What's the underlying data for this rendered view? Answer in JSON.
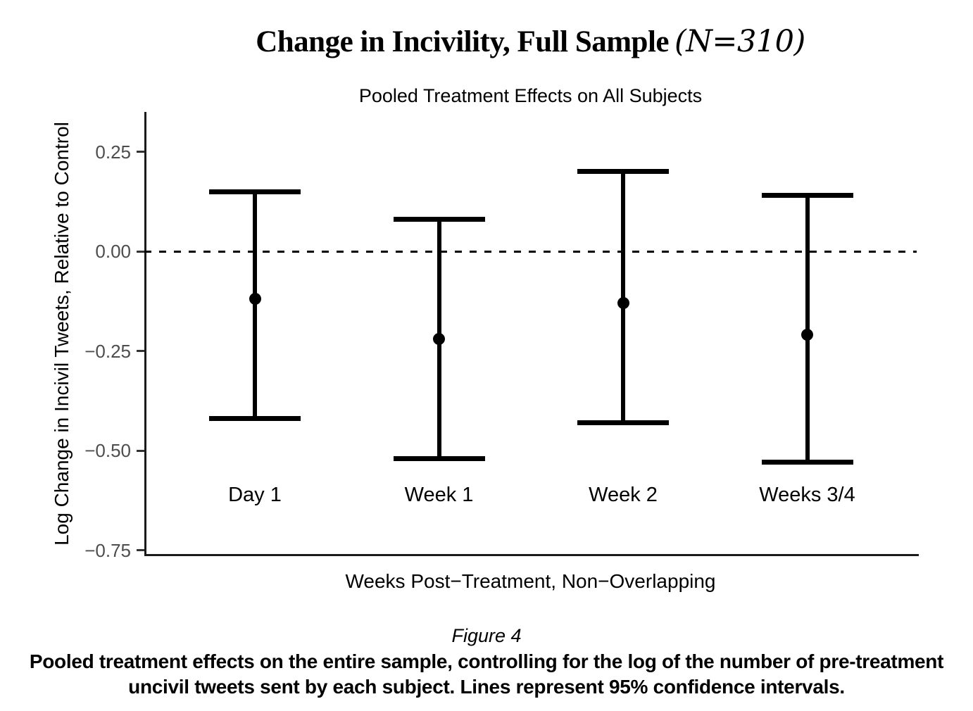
{
  "header": {
    "title": "Change in Incivility, Full Sample",
    "title_note": "(N=310)",
    "subtitle": "Pooled Treatment Effects on All Subjects"
  },
  "axes": {
    "y_title": "Log Change in Incivil Tweets, Relative to Control",
    "x_title": "Weeks Post−Treatment, Non−Overlapping"
  },
  "caption": {
    "figure_label": "Figure 4",
    "line1": "Pooled treatment effects on the entire sample, controlling for the log of the number of pre-treatment",
    "line2": "uncivil tweets sent by each subject. Lines represent 95% confidence intervals."
  },
  "chart_data": {
    "type": "scatter",
    "subtype": "pointrange-errorbar",
    "title": "Change in Incivility, Full Sample (N=310)",
    "subtitle": "Pooled Treatment Effects on All Subjects",
    "xlabel": "Weeks Post−Treatment, Non−Overlapping",
    "ylabel": "Log Change in Incivil Tweets, Relative to Control",
    "categories": [
      "Day 1",
      "Week 1",
      "Week 2",
      "Weeks 3/4"
    ],
    "estimates": [
      -0.12,
      -0.22,
      -0.13,
      -0.21
    ],
    "ci_lower": [
      -0.42,
      -0.52,
      -0.43,
      -0.53
    ],
    "ci_upper": [
      0.15,
      0.08,
      0.2,
      0.14
    ],
    "ci_level": "95%",
    "ylim": [
      -0.76,
      0.35
    ],
    "yticks": {
      "values": [
        0.25,
        0.0,
        -0.25,
        -0.5,
        -0.75
      ],
      "labels": [
        "0.25",
        "0.00",
        "−0.25",
        "−0.50",
        "−0.75"
      ]
    },
    "zero_reference_line": {
      "value": 0,
      "style": "dashed",
      "color": "#000000"
    },
    "point_color": "#000000",
    "line_color": "#000000",
    "tick_label_color": "#4d4d4d",
    "grid": false,
    "legend": false
  }
}
